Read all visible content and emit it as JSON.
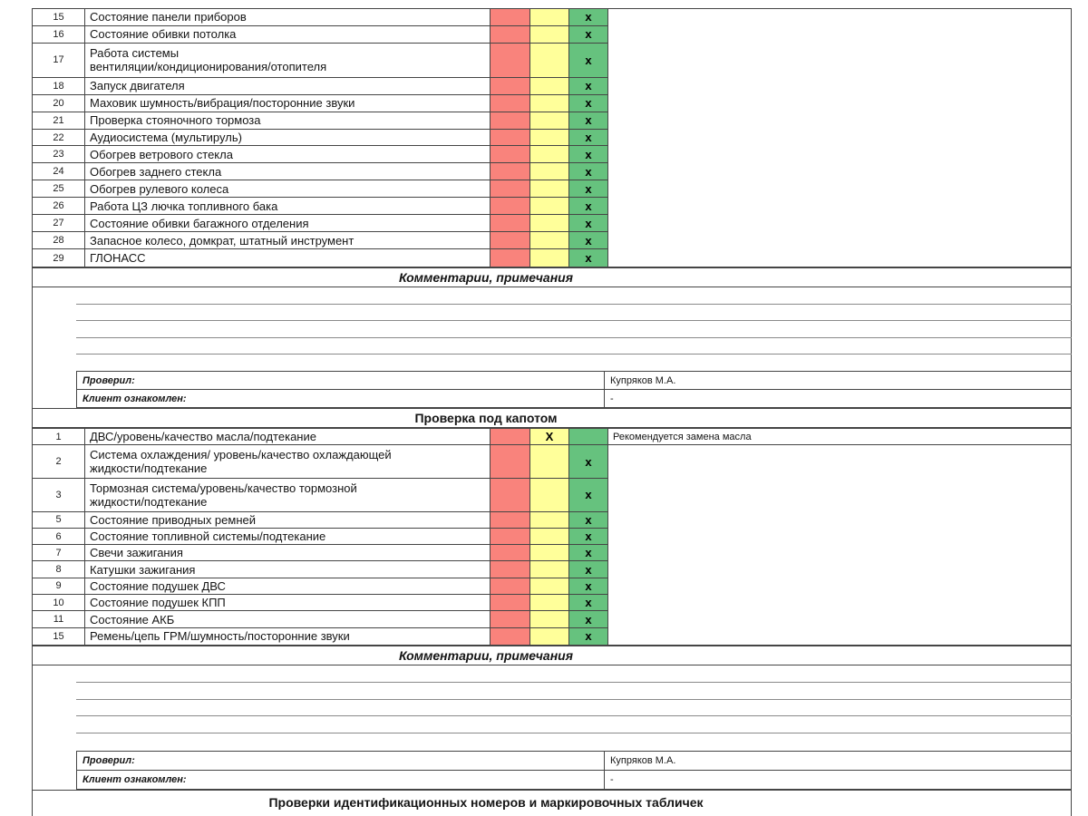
{
  "colors": {
    "status_red": "#F9837C",
    "status_yellow": "#FFFF9A",
    "status_green": "#66C27E"
  },
  "interior_table": {
    "rows": [
      {
        "num": "15",
        "label": "Состояние панели приборов",
        "status": "green",
        "mark": "x"
      },
      {
        "num": "16",
        "label": "Состояние обивки потолка",
        "status": "green",
        "mark": "x"
      },
      {
        "num": "17",
        "label": "Работа системы\nвентиляции/кондиционирования/отопителя",
        "status": "green",
        "mark": "x",
        "tall": true
      },
      {
        "num": "18",
        "label": "Запуск двигателя",
        "status": "green",
        "mark": "x"
      },
      {
        "num": "20",
        "label": "Маховик шумность/вибрация/посторонние звуки",
        "status": "green",
        "mark": "x"
      },
      {
        "num": "21",
        "label": "Проверка стояночного тормоза",
        "status": "green",
        "mark": "x"
      },
      {
        "num": "22",
        "label": "Аудиосистема (мультируль)",
        "status": "green",
        "mark": "x"
      },
      {
        "num": "23",
        "label": "Обогрев ветрового стекла",
        "status": "green",
        "mark": "x"
      },
      {
        "num": "24",
        "label": "Обогрев заднего стекла",
        "status": "green",
        "mark": "x"
      },
      {
        "num": "25",
        "label": "Обогрев рулевого колеса",
        "status": "green",
        "mark": "x"
      },
      {
        "num": "26",
        "label": "Работа ЦЗ лючка топливного бака",
        "status": "green",
        "mark": "x"
      },
      {
        "num": "27",
        "label": "Состояние обивки багажного отделения",
        "status": "green",
        "mark": "x"
      },
      {
        "num": "28",
        "label": "Запасное колесо, домкрат, штатный инструмент",
        "status": "green",
        "mark": "x"
      },
      {
        "num": "29",
        "label": "ГЛОНАСС",
        "status": "green",
        "mark": "x"
      }
    ]
  },
  "comments1": {
    "title": "Комментарии, примечания",
    "blank_lines": 4,
    "checked_by_label": "Проверил:",
    "checked_by_value": "Купряков М.А.",
    "client_label": "Клиент ознакомлен:",
    "client_value": "-"
  },
  "under_hood_header": "Проверка под капотом",
  "under_hood_table": {
    "rows": [
      {
        "num": "1",
        "label": "ДВС/уровень/качество масла/подтекание",
        "status": "yellow",
        "mark": "X",
        "comment": "Рекомендуется замена масла"
      },
      {
        "num": "2",
        "label": "Система охлаждения/ уровень/качество охлаждающей\nжидкости/подтекание",
        "status": "green",
        "mark": "x",
        "tall": true
      },
      {
        "num": "3",
        "label": "Тормозная система/уровень/качество тормозной\nжидкости/подтекание",
        "status": "green",
        "mark": "x",
        "tall": true
      },
      {
        "num": "5",
        "label": "Состояние приводных ремней",
        "status": "green",
        "mark": "x"
      },
      {
        "num": "6",
        "label": "Состояние топливной системы/подтекание",
        "status": "green",
        "mark": "x"
      },
      {
        "num": "7",
        "label": "Свечи зажигания",
        "status": "green",
        "mark": "x"
      },
      {
        "num": "8",
        "label": "Катушки зажигания",
        "status": "green",
        "mark": "x"
      },
      {
        "num": "9",
        "label": "Состояние подушек ДВС",
        "status": "green",
        "mark": "x"
      },
      {
        "num": "10",
        "label": "Состояние подушек КПП",
        "status": "green",
        "mark": "x"
      },
      {
        "num": "11",
        "label": "Состояние АКБ",
        "status": "green",
        "mark": "x"
      },
      {
        "num": "15",
        "label": "Ремень/цепь ГРМ/шумность/посторонние звуки",
        "status": "green",
        "mark": "x"
      }
    ]
  },
  "comments2": {
    "title": "Комментарии, примечания",
    "blank_lines": 4,
    "checked_by_label": "Проверил:",
    "checked_by_value": "Купряков М.А.",
    "client_label": "Клиент ознакомлен:",
    "client_value": "-"
  },
  "footer_header": "Проверки идентификационных номеров и маркировочных табличек"
}
